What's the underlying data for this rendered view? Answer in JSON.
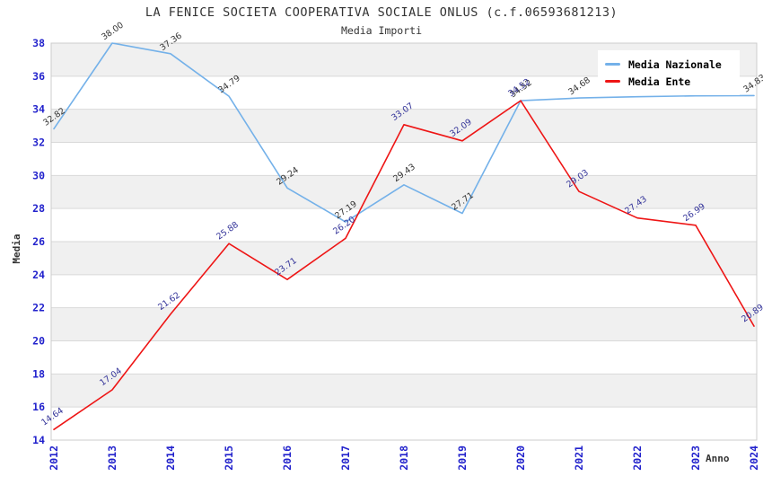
{
  "header": {
    "title": "LA FENICE SOCIETA COOPERATIVA SOCIALE ONLUS (c.f.06593681213)",
    "subtitle": "Media Importi"
  },
  "chart_data": {
    "type": "line",
    "title": "LA FENICE SOCIETA COOPERATIVA SOCIALE ONLUS (c.f.06593681213)",
    "subtitle": "Media Importi",
    "xlabel": "Anno",
    "ylabel": "Media",
    "categories": [
      "2012",
      "2013",
      "2014",
      "2015",
      "2016",
      "2017",
      "2018",
      "2019",
      "2020",
      "2021",
      "2022",
      "2023",
      "2024"
    ],
    "y_ticks": [
      14,
      16,
      18,
      20,
      22,
      24,
      26,
      28,
      30,
      32,
      34,
      36,
      38
    ],
    "ylim": [
      14,
      38
    ],
    "grid": "horizontal-bands",
    "legend_position": "top-right",
    "band_color": "#f0f0f0",
    "grid_line_color": "#d9d9d9",
    "plot_border_color": "#cccccc",
    "axis_text_color": "#2222cc",
    "series": [
      {
        "name": "Media Nazionale",
        "color": "#74b1e9",
        "label_color": "#333333",
        "values": [
          32.82,
          38.0,
          37.36,
          34.79,
          29.24,
          27.19,
          29.43,
          27.71,
          34.52,
          34.68,
          34.76,
          34.81,
          34.83
        ],
        "labels": [
          "32.82",
          "38.00",
          "37.36",
          "34.79",
          "29.24",
          "27.19",
          "29.43",
          "27.71",
          "34.52",
          "34.68",
          null,
          null,
          "34.83"
        ]
      },
      {
        "name": "Media Ente",
        "color": "#ee1515",
        "label_color": "#333399",
        "values": [
          14.64,
          17.04,
          21.62,
          25.88,
          23.71,
          26.2,
          33.07,
          32.09,
          34.52,
          29.03,
          27.43,
          26.99,
          20.89
        ],
        "labels": [
          "14.64",
          "17.04",
          "21.62",
          "25.88",
          "23.71",
          "26.20",
          "33.07",
          "32.09",
          "34.52",
          "29.03",
          "27.43",
          "26.99",
          "20.89"
        ]
      }
    ]
  }
}
